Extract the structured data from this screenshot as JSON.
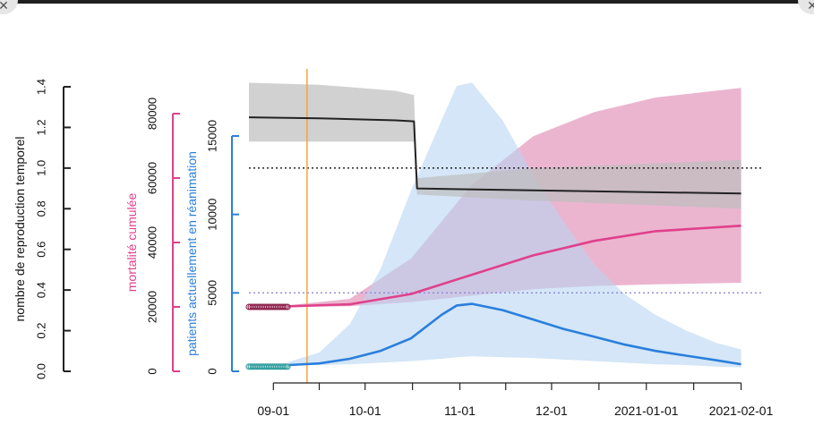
{
  "ui": {
    "close_glyph": "✕"
  },
  "chart_data": {
    "type": "line",
    "xlabel": "",
    "x_tick_labels": [
      "09-01",
      "10-01",
      "11-01",
      "12-01",
      "2021-01-01",
      "2021-02-01"
    ],
    "x_ticks": [
      {
        "label": "09-01",
        "day": 5
      },
      {
        "label": "10-01",
        "day": 35
      },
      {
        "label": "11-01",
        "day": 66
      },
      {
        "label": "12-01",
        "day": 96
      },
      {
        "label": "2021-01-01",
        "day": 127
      },
      {
        "label": "2021-02-01",
        "day": 158
      }
    ],
    "xlim_days": [
      -3,
      159
    ],
    "axes": {
      "r": {
        "label": "nombre de reproduction temporel",
        "color": "#222222",
        "range": [
          0,
          1.4
        ],
        "ticks": [
          0.0,
          0.2,
          0.4,
          0.6,
          0.8,
          1.0,
          1.2,
          1.4
        ],
        "tick_labels": [
          "0.0",
          "0.2",
          "0.4",
          "0.6",
          "0.8",
          "1.0",
          "1.2",
          "1.4"
        ]
      },
      "mortality": {
        "label": "mortalité cumulée",
        "color": "#e0408a",
        "range": [
          0,
          80000
        ],
        "ticks": [
          0,
          20000,
          40000,
          60000,
          80000
        ],
        "tick_labels": [
          "0",
          "20000",
          "40000",
          "60000",
          "80000"
        ]
      },
      "icu": {
        "label": "patients actuellement en réanimation",
        "color": "#2a7fdc",
        "range": [
          0,
          15000
        ],
        "ticks": [
          0,
          5000,
          10000,
          15000
        ],
        "tick_labels": [
          "0",
          "5000",
          "10000",
          "15000"
        ]
      }
    },
    "reference_lines": [
      {
        "axis": "r",
        "value": 1.0,
        "style": "dotted",
        "color": "#111111"
      },
      {
        "axis": "icu",
        "value": 5000,
        "style": "dotted",
        "color": "#8f86d6"
      }
    ],
    "vertical_marker": {
      "day": 16,
      "color": "#f0a030"
    },
    "series": [
      {
        "axis": "r",
        "color": "#222222",
        "band_color": "#bdbdbd",
        "x": [
          -3,
          20,
          45,
          51,
          52,
          90,
          158
        ],
        "values": [
          1.25,
          1.245,
          1.235,
          1.23,
          0.9,
          0.89,
          0.875
        ],
        "lower": [
          1.13,
          1.13,
          1.13,
          1.13,
          0.87,
          0.84,
          0.8
        ],
        "upper": [
          1.42,
          1.41,
          1.38,
          1.36,
          0.95,
          1.0,
          1.04
        ]
      },
      {
        "axis": "mortality",
        "color": "#e0408a",
        "band_color": "#e8a8c8",
        "x": [
          10,
          30,
          50,
          70,
          90,
          110,
          130,
          158
        ],
        "values": [
          20200,
          20800,
          24000,
          30000,
          36000,
          40500,
          43500,
          45200
        ],
        "lower": [
          20000,
          20200,
          21500,
          23500,
          25500,
          26500,
          27000,
          27500
        ],
        "upper": [
          20500,
          22500,
          35000,
          58000,
          73000,
          80500,
          85000,
          88000
        ]
      },
      {
        "axis": "icu",
        "color": "#2a7fdc",
        "band_color": "#b8d6f2",
        "x": [
          10,
          20,
          30,
          40,
          50,
          60,
          65,
          70,
          80,
          90,
          100,
          110,
          120,
          130,
          140,
          150,
          158
        ],
        "values": [
          400,
          500,
          800,
          1300,
          2100,
          3600,
          4200,
          4300,
          3900,
          3300,
          2700,
          2200,
          1700,
          1300,
          1000,
          700,
          450
        ],
        "lower": [
          400,
          400,
          450,
          550,
          650,
          800,
          900,
          950,
          900,
          850,
          750,
          650,
          550,
          450,
          400,
          300,
          250
        ],
        "upper": [
          600,
          1200,
          3000,
          6500,
          11500,
          16000,
          18200,
          18400,
          16000,
          12500,
          9500,
          6800,
          4900,
          3600,
          2600,
          1800,
          1400
        ]
      }
    ],
    "observed_points": [
      {
        "axis": "mortality",
        "color": "#8a1f4a",
        "x_start": -3,
        "x_end": 10,
        "value": 20000
      },
      {
        "axis": "icu",
        "color": "#2a9a9a",
        "x_start": -3,
        "x_end": 10,
        "value": 300
      }
    ],
    "grid": false,
    "legend": "none"
  }
}
